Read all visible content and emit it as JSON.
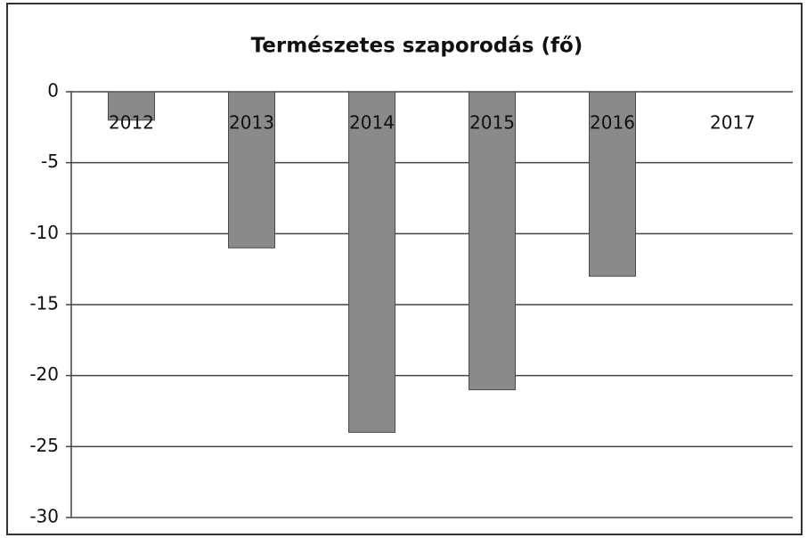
{
  "chart_data": {
    "type": "bar",
    "title": "Természetes szaporodás (fő)",
    "categories": [
      "2012",
      "2013",
      "2014",
      "2015",
      "2016",
      "2017"
    ],
    "values": [
      -2,
      -11,
      -24,
      -21,
      -13,
      0
    ],
    "color": "#8a8a8a",
    "ylim": [
      -30,
      0
    ],
    "yticks": [
      0,
      -5,
      -10,
      -15,
      -20,
      -25,
      -30
    ],
    "grid": true
  }
}
